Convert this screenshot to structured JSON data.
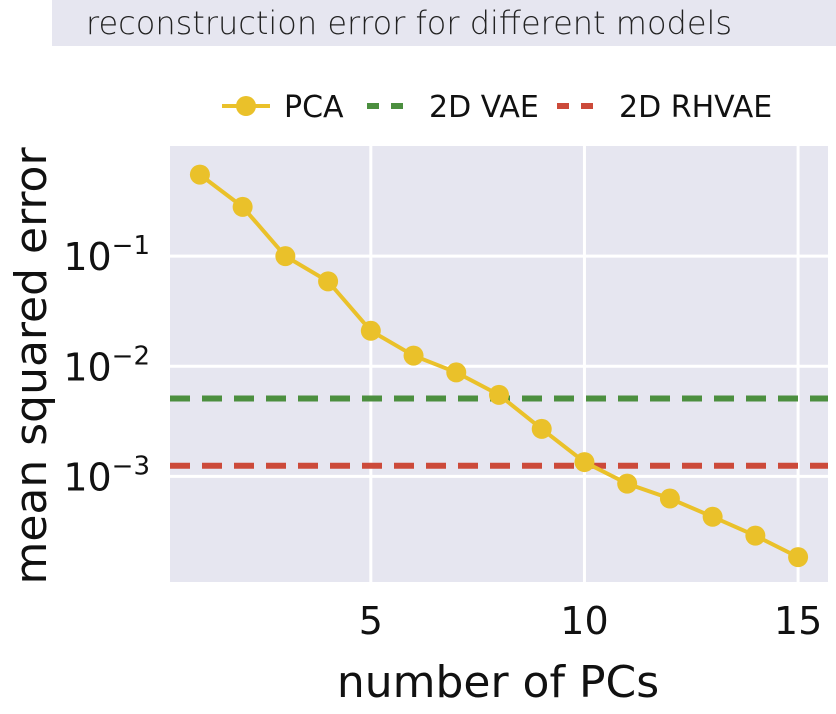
{
  "chart_data": {
    "type": "line",
    "title": "reconstruction error for different models",
    "xlabel": "number of PCs",
    "ylabel": "mean squared error",
    "yscale": "log",
    "xlim": [
      0.3,
      15.7
    ],
    "ylim": [
      0.00011,
      1.0
    ],
    "xticks": [
      5,
      10,
      15
    ],
    "yticks": [
      {
        "value": 0.1,
        "base": "10",
        "exp": "−1"
      },
      {
        "value": 0.01,
        "base": "10",
        "exp": "−2"
      },
      {
        "value": 0.001,
        "base": "10",
        "exp": "−3"
      }
    ],
    "grid": true,
    "legend_position": "top",
    "series": [
      {
        "name": "PCA",
        "style": "line-marker",
        "color": "#eac12a",
        "x": [
          1,
          2,
          3,
          4,
          5,
          6,
          7,
          8,
          9,
          10,
          11,
          12,
          13,
          14,
          15
        ],
        "y": [
          0.55,
          0.28,
          0.1,
          0.059,
          0.021,
          0.0125,
          0.0088,
          0.0055,
          0.0027,
          0.00135,
          0.00086,
          0.00063,
          0.00043,
          0.00029,
          0.000185
        ]
      },
      {
        "name": "2D VAE",
        "style": "dashed",
        "color": "#4c8f3f",
        "y": 0.0051
      },
      {
        "name": "2D RHVAE",
        "style": "dashed",
        "color": "#cc4a3a",
        "y": 0.00125
      }
    ]
  }
}
